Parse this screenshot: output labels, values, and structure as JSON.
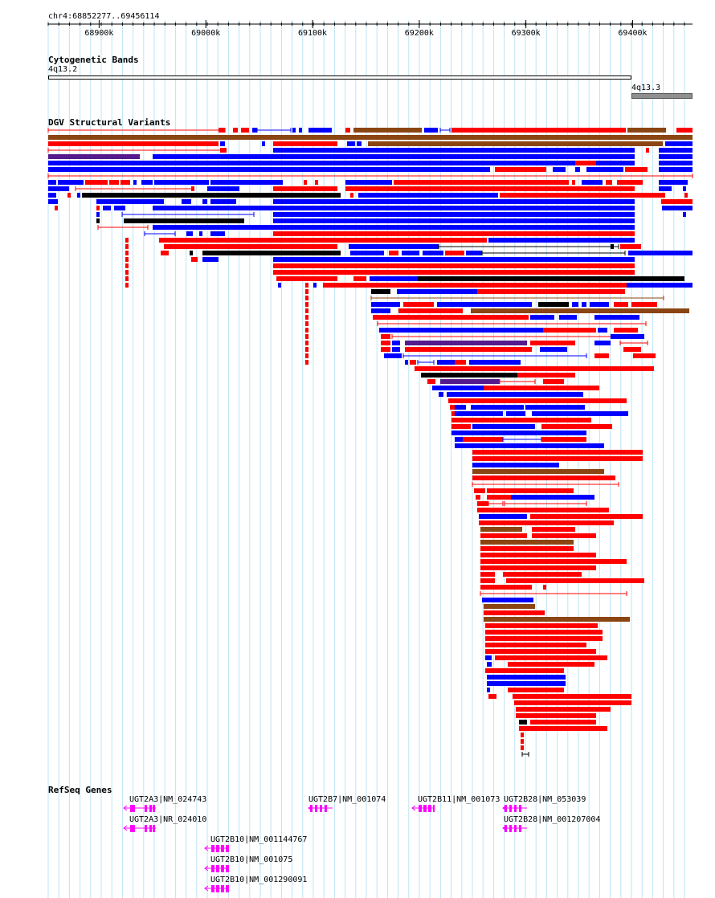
{
  "position": "chr4:68852277..69456114",
  "ruler": {
    "start": 68852277,
    "end": 69456114,
    "ticks": [
      {
        "label": "68900k",
        "value": 68900000
      },
      {
        "label": "69000k",
        "value": 69000000
      },
      {
        "label": "69100k",
        "value": 69100000
      },
      {
        "label": "69200k",
        "value": 69200000
      },
      {
        "label": "69300k",
        "value": 69300000
      },
      {
        "label": "69400k",
        "value": 69400000
      }
    ]
  },
  "tracks": {
    "cytoband": {
      "title": "Cytogenetic Bands",
      "bands": [
        {
          "name": "4q13.2",
          "color": "#ffffff"
        },
        {
          "name": "4q13.3",
          "color": "#8f8f8f"
        }
      ]
    },
    "dgv": {
      "title": "DGV Structural Variants",
      "colors": {
        "gain": "#0000ff",
        "loss": "#ff0000",
        "inversion": "#8b4513",
        "complex": "#000000",
        "other": "#551a8b"
      }
    },
    "refseq": {
      "title": "RefSeq Genes",
      "genes": [
        {
          "label": "UGT2A3|NM_024743",
          "color": "#ff00ff"
        },
        {
          "label": "UGT2A3|NR_024010",
          "color": "#ff00ff"
        },
        {
          "label": "UGT2B10|NM_001144767",
          "color": "#ff00ff"
        },
        {
          "label": "UGT2B10|NM_001075",
          "color": "#ff00ff"
        },
        {
          "label": "UGT2B10|NM_001290091",
          "color": "#ff00ff"
        },
        {
          "label": "UGT2B7|NM_001074",
          "color": "#ff00ff"
        },
        {
          "label": "UGT2B11|NM_001073",
          "color": "#ff00ff"
        },
        {
          "label": "UGT2B28|NM_053039",
          "color": "#ff00ff"
        },
        {
          "label": "UGT2B28|NM_001207004",
          "color": "#ff00ff"
        }
      ]
    }
  }
}
